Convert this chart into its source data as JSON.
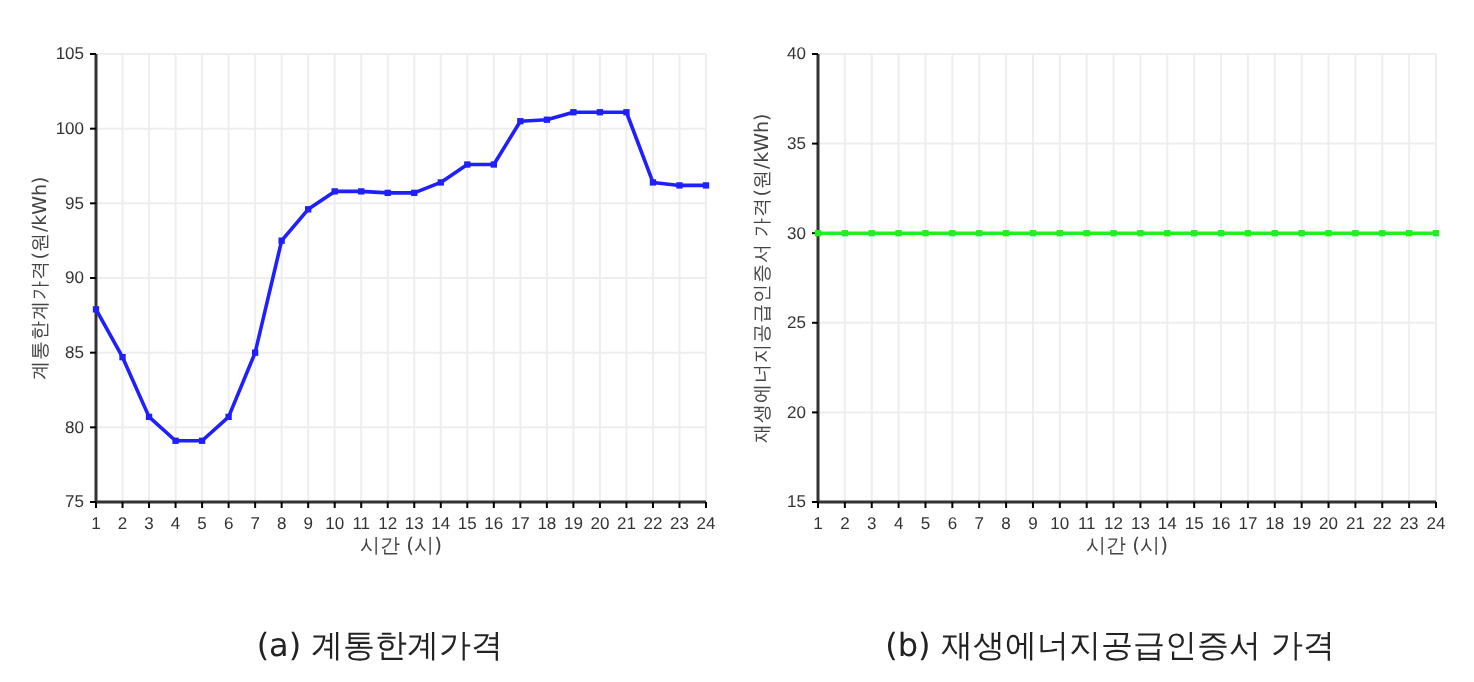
{
  "chart_data": [
    {
      "type": "line",
      "title": "(a) 계통한계가격",
      "xlabel": "시간 (시)",
      "ylabel": "계통한계가격(원/kWh)",
      "x": [
        1,
        2,
        3,
        4,
        5,
        6,
        7,
        8,
        9,
        10,
        11,
        12,
        13,
        14,
        15,
        16,
        17,
        18,
        19,
        20,
        21,
        22,
        23,
        24
      ],
      "series": [
        {
          "color": "#1f1fff",
          "values": [
            87.9,
            84.7,
            80.7,
            79.1,
            79.1,
            80.7,
            85.0,
            92.5,
            94.6,
            95.8,
            95.8,
            95.7,
            95.7,
            96.4,
            97.6,
            97.6,
            100.5,
            100.6,
            101.1,
            101.1,
            101.1,
            96.4,
            96.2,
            96.2
          ]
        }
      ],
      "xlim": [
        1,
        24
      ],
      "xticks": [
        1,
        2,
        3,
        4,
        5,
        6,
        7,
        8,
        9,
        10,
        11,
        12,
        13,
        14,
        15,
        16,
        17,
        18,
        19,
        20,
        21,
        22,
        23,
        24
      ],
      "ylim": [
        75,
        105
      ],
      "yticks": [
        75,
        80,
        85,
        90,
        95,
        100,
        105
      ],
      "grid": true,
      "marker": "square",
      "line_style": "solid"
    },
    {
      "type": "line",
      "title": "(b) 재생에너지공급인증서 가격",
      "xlabel": "시간 (시)",
      "ylabel": "재생에너지공급인증서 가격(원/kWh)",
      "x": [
        1,
        2,
        3,
        4,
        5,
        6,
        7,
        8,
        9,
        10,
        11,
        12,
        13,
        14,
        15,
        16,
        17,
        18,
        19,
        20,
        21,
        22,
        23,
        24
      ],
      "series": [
        {
          "color": "#22ee22",
          "values": [
            30,
            30,
            30,
            30,
            30,
            30,
            30,
            30,
            30,
            30,
            30,
            30,
            30,
            30,
            30,
            30,
            30,
            30,
            30,
            30,
            30,
            30,
            30,
            30
          ]
        }
      ],
      "xlim": [
        1,
        24
      ],
      "xticks": [
        1,
        2,
        3,
        4,
        5,
        6,
        7,
        8,
        9,
        10,
        11,
        12,
        13,
        14,
        15,
        16,
        17,
        18,
        19,
        20,
        21,
        22,
        23,
        24
      ],
      "ylim": [
        15,
        40
      ],
      "yticks": [
        15,
        20,
        25,
        30,
        35,
        40
      ],
      "grid": true,
      "marker": "square",
      "line_style": "solid"
    }
  ]
}
